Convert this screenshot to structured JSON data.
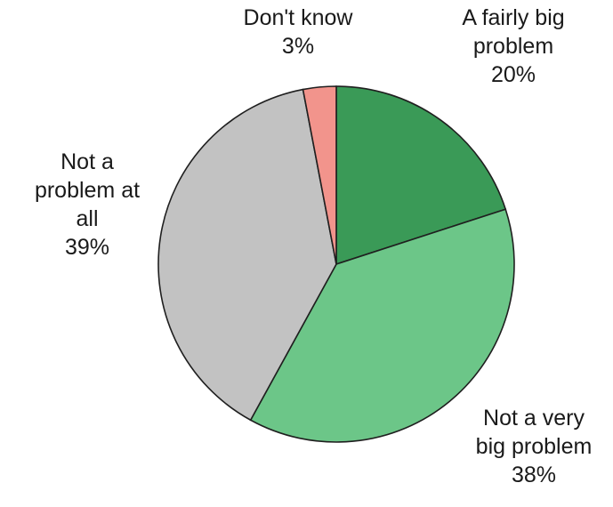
{
  "chart_data": {
    "type": "pie",
    "slices": [
      {
        "label": [
          "A fairly big",
          "problem"
        ],
        "value": 20,
        "value_label": "20%",
        "color": "#3a9a57"
      },
      {
        "label": [
          "Not a very",
          "big problem"
        ],
        "value": 38,
        "value_label": "38%",
        "color": "#6cc688"
      },
      {
        "label": [
          "Not a",
          "problem at",
          "all"
        ],
        "value": 39,
        "value_label": "39%",
        "color": "#c2c2c2"
      },
      {
        "label": [
          "Don't know"
        ],
        "value": 3,
        "value_label": "3%",
        "color": "#f2948c"
      }
    ],
    "start_angle": "12 o'clock",
    "direction": "clockwise",
    "legend": "none"
  }
}
